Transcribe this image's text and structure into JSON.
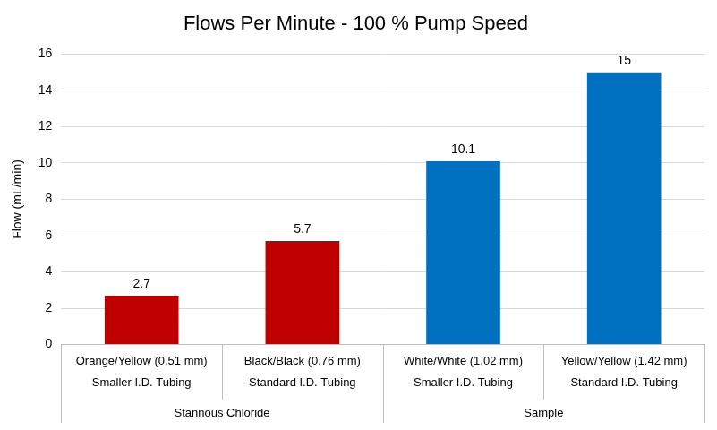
{
  "chart_data": {
    "type": "bar",
    "title": "Flows Per Minute - 100 % Pump Speed",
    "y_label": "Flow (mL/min)",
    "categories": [
      [
        "Orange/Yellow (0.51 mm)",
        "Smaller I.D. Tubing"
      ],
      [
        "Black/Black (0.76 mm)",
        "Standard I.D. Tubing"
      ],
      [
        "White/White (1.02 mm)",
        "Smaller I.D. Tubing"
      ],
      [
        "Yellow/Yellow (1.42 mm)",
        "Standard I.D. Tubing"
      ]
    ],
    "groups": [
      "Stannous Chloride",
      "Stannous Chloride",
      "Sample",
      "Sample"
    ],
    "values": [
      2.7,
      5.7,
      10.1,
      15
    ],
    "colors": [
      "#c00000",
      "#c00000",
      "#0070c0",
      "#0070c0"
    ],
    "ylim": [
      0,
      16
    ],
    "yticks": [
      0,
      2,
      4,
      6,
      8,
      10,
      12,
      14,
      16
    ],
    "grid": true,
    "data_labels": true
  }
}
